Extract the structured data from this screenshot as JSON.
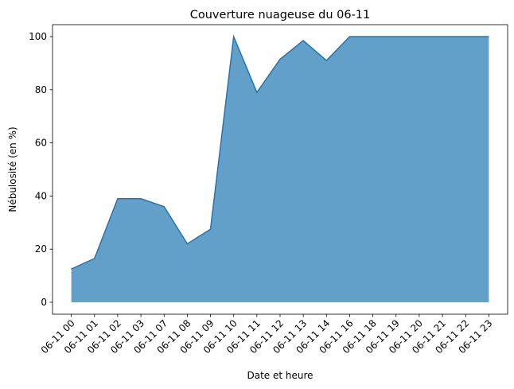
{
  "chart_data": {
    "type": "area",
    "title": "Couverture nuageuse du 06-11",
    "xlabel": "Date et heure",
    "ylabel": "Nébulosité (en %)",
    "categories": [
      "06-11 00",
      "06-11 01",
      "06-11 02",
      "06-11 03",
      "06-11 07",
      "06-11 08",
      "06-11 09",
      "06-11 10",
      "06-11 11",
      "06-11 12",
      "06-11 13",
      "06-11 14",
      "06-11 16",
      "06-11 18",
      "06-11 19",
      "06-11 20",
      "06-11 21",
      "06-11 22",
      "06-11 23"
    ],
    "values": [
      12.5,
      16.5,
      39,
      39,
      36,
      22,
      27.5,
      100,
      79,
      91.5,
      98.5,
      91,
      100,
      100,
      100,
      100,
      100,
      100,
      100
    ],
    "ylim": [
      -4.5,
      104.5
    ],
    "yticks": [
      0,
      20,
      40,
      60,
      80,
      100
    ],
    "grid": false,
    "colors": {
      "fill": "#62a0ca",
      "line": "#1f77b4"
    }
  }
}
